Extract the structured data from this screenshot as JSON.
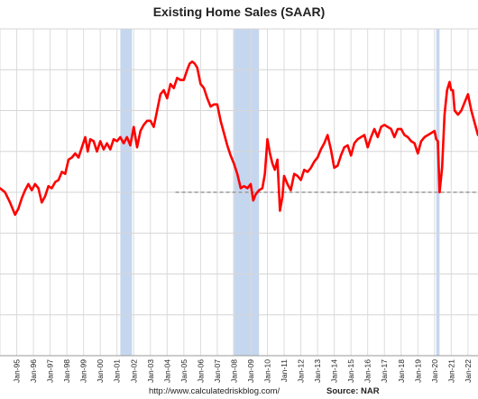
{
  "chart_data": {
    "type": "line",
    "title": "Existing Home Sales (SAAR)",
    "xlabel": "",
    "ylabel": "",
    "x_tick_labels": [
      "Jan-95",
      "Jan-96",
      "Jan-97",
      "Jan-98",
      "Jan-99",
      "Jan-00",
      "Jan-01",
      "Jan-02",
      "Jan-03",
      "Jan-04",
      "Jan-05",
      "Jan-06",
      "Jan-07",
      "Jan-08",
      "Jan-09",
      "Jan-10",
      "Jan-11",
      "Jan-12",
      "Jan-13",
      "Jan-14",
      "Jan-15",
      "Jan-16",
      "Jan-17",
      "Jan-18",
      "Jan-19",
      "Jan-20",
      "Jan-21",
      "Jan-22"
    ],
    "xlim": [
      1994.0,
      2022.6
    ],
    "ylim": [
      0,
      8
    ],
    "grid": true,
    "legend": "none",
    "recessions": [
      [
        2001.2,
        2001.9
      ],
      [
        2007.95,
        2009.5
      ],
      [
        2020.1,
        2020.3
      ]
    ],
    "reference_line": {
      "from_x": 2004.5,
      "to_x": 2022.6,
      "y": 4.0
    },
    "series": [
      {
        "color": "#ff0000",
        "points": [
          [
            1994.0,
            4.1
          ],
          [
            1994.3,
            4.0
          ],
          [
            1994.6,
            3.75
          ],
          [
            1994.9,
            3.45
          ],
          [
            1995.1,
            3.6
          ],
          [
            1995.3,
            3.85
          ],
          [
            1995.5,
            4.05
          ],
          [
            1995.7,
            4.2
          ],
          [
            1995.9,
            4.05
          ],
          [
            1996.1,
            4.2
          ],
          [
            1996.3,
            4.1
          ],
          [
            1996.5,
            3.75
          ],
          [
            1996.7,
            3.9
          ],
          [
            1996.9,
            4.15
          ],
          [
            1997.1,
            4.1
          ],
          [
            1997.3,
            4.25
          ],
          [
            1997.5,
            4.3
          ],
          [
            1997.7,
            4.5
          ],
          [
            1997.9,
            4.45
          ],
          [
            1998.1,
            4.8
          ],
          [
            1998.3,
            4.85
          ],
          [
            1998.5,
            4.95
          ],
          [
            1998.7,
            4.85
          ],
          [
            1998.9,
            5.1
          ],
          [
            1999.1,
            5.35
          ],
          [
            1999.25,
            5.0
          ],
          [
            1999.4,
            5.3
          ],
          [
            1999.6,
            5.25
          ],
          [
            1999.8,
            5.0
          ],
          [
            2000.0,
            5.25
          ],
          [
            2000.2,
            5.05
          ],
          [
            2000.4,
            5.2
          ],
          [
            2000.6,
            5.05
          ],
          [
            2000.8,
            5.3
          ],
          [
            2001.0,
            5.25
          ],
          [
            2001.2,
            5.35
          ],
          [
            2001.4,
            5.2
          ],
          [
            2001.6,
            5.35
          ],
          [
            2001.8,
            5.15
          ],
          [
            2002.0,
            5.6
          ],
          [
            2002.2,
            5.1
          ],
          [
            2002.4,
            5.5
          ],
          [
            2002.6,
            5.65
          ],
          [
            2002.8,
            5.75
          ],
          [
            2003.0,
            5.75
          ],
          [
            2003.2,
            5.6
          ],
          [
            2003.4,
            6.0
          ],
          [
            2003.6,
            6.4
          ],
          [
            2003.8,
            6.5
          ],
          [
            2004.0,
            6.3
          ],
          [
            2004.2,
            6.65
          ],
          [
            2004.4,
            6.55
          ],
          [
            2004.6,
            6.8
          ],
          [
            2004.8,
            6.75
          ],
          [
            2005.0,
            6.75
          ],
          [
            2005.2,
            7.0
          ],
          [
            2005.35,
            7.15
          ],
          [
            2005.5,
            7.2
          ],
          [
            2005.65,
            7.15
          ],
          [
            2005.8,
            7.05
          ],
          [
            2006.0,
            6.65
          ],
          [
            2006.2,
            6.55
          ],
          [
            2006.4,
            6.3
          ],
          [
            2006.6,
            6.1
          ],
          [
            2006.8,
            6.15
          ],
          [
            2007.0,
            6.15
          ],
          [
            2007.2,
            5.75
          ],
          [
            2007.4,
            5.45
          ],
          [
            2007.6,
            5.15
          ],
          [
            2007.8,
            4.9
          ],
          [
            2008.0,
            4.7
          ],
          [
            2008.2,
            4.45
          ],
          [
            2008.4,
            4.1
          ],
          [
            2008.6,
            4.15
          ],
          [
            2008.8,
            4.1
          ],
          [
            2009.0,
            4.2
          ],
          [
            2009.15,
            3.8
          ],
          [
            2009.3,
            3.95
          ],
          [
            2009.5,
            4.05
          ],
          [
            2009.7,
            4.1
          ],
          [
            2009.85,
            4.45
          ],
          [
            2010.0,
            5.3
          ],
          [
            2010.15,
            4.95
          ],
          [
            2010.3,
            4.7
          ],
          [
            2010.45,
            4.55
          ],
          [
            2010.6,
            4.8
          ],
          [
            2010.75,
            3.55
          ],
          [
            2010.9,
            3.9
          ],
          [
            2011.0,
            4.4
          ],
          [
            2011.2,
            4.2
          ],
          [
            2011.4,
            4.05
          ],
          [
            2011.6,
            4.45
          ],
          [
            2011.8,
            4.4
          ],
          [
            2012.0,
            4.3
          ],
          [
            2012.2,
            4.55
          ],
          [
            2012.4,
            4.5
          ],
          [
            2012.6,
            4.6
          ],
          [
            2012.8,
            4.75
          ],
          [
            2013.0,
            4.85
          ],
          [
            2013.2,
            5.05
          ],
          [
            2013.4,
            5.2
          ],
          [
            2013.6,
            5.4
          ],
          [
            2013.8,
            5.05
          ],
          [
            2014.0,
            4.6
          ],
          [
            2014.2,
            4.65
          ],
          [
            2014.4,
            4.9
          ],
          [
            2014.6,
            5.1
          ],
          [
            2014.8,
            5.15
          ],
          [
            2015.0,
            4.9
          ],
          [
            2015.2,
            5.2
          ],
          [
            2015.4,
            5.3
          ],
          [
            2015.6,
            5.35
          ],
          [
            2015.8,
            5.4
          ],
          [
            2016.0,
            5.1
          ],
          [
            2016.2,
            5.35
          ],
          [
            2016.4,
            5.55
          ],
          [
            2016.6,
            5.35
          ],
          [
            2016.8,
            5.6
          ],
          [
            2017.0,
            5.65
          ],
          [
            2017.2,
            5.6
          ],
          [
            2017.4,
            5.55
          ],
          [
            2017.6,
            5.35
          ],
          [
            2017.8,
            5.55
          ],
          [
            2018.0,
            5.55
          ],
          [
            2018.2,
            5.4
          ],
          [
            2018.4,
            5.35
          ],
          [
            2018.6,
            5.25
          ],
          [
            2018.8,
            5.2
          ],
          [
            2019.0,
            4.95
          ],
          [
            2019.2,
            5.25
          ],
          [
            2019.4,
            5.35
          ],
          [
            2019.6,
            5.4
          ],
          [
            2019.8,
            5.45
          ],
          [
            2020.0,
            5.5
          ],
          [
            2020.1,
            5.3
          ],
          [
            2020.2,
            5.25
          ],
          [
            2020.3,
            4.0
          ],
          [
            2020.45,
            4.6
          ],
          [
            2020.6,
            5.9
          ],
          [
            2020.75,
            6.5
          ],
          [
            2020.9,
            6.7
          ],
          [
            2021.0,
            6.5
          ],
          [
            2021.1,
            6.5
          ],
          [
            2021.2,
            6.0
          ],
          [
            2021.4,
            5.9
          ],
          [
            2021.6,
            6.0
          ],
          [
            2021.8,
            6.2
          ],
          [
            2022.0,
            6.4
          ],
          [
            2022.2,
            6.0
          ],
          [
            2022.4,
            5.7
          ],
          [
            2022.6,
            5.4
          ]
        ]
      }
    ]
  },
  "footer": {
    "url": "http://www.calculatedriskblog.com/",
    "source": "Source: NAR"
  }
}
